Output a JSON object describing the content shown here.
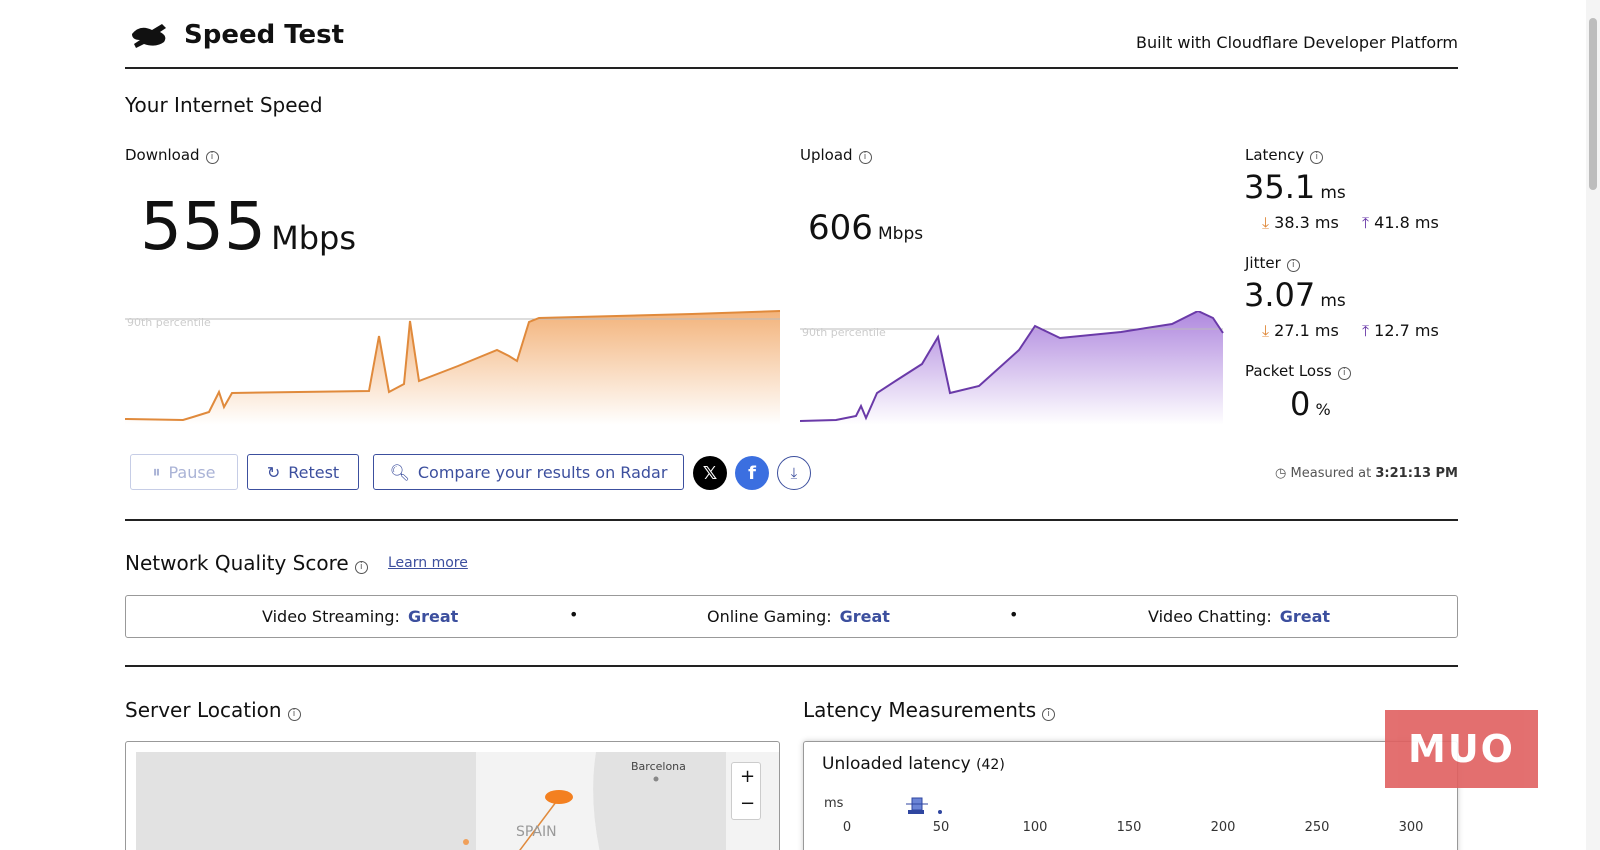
{
  "header": {
    "title": "Speed Test",
    "tagline": "Built with Cloudflare Developer Platform"
  },
  "speed": {
    "title": "Your Internet Speed",
    "download": {
      "label": "Download",
      "value": "555",
      "unit": "Mbps",
      "percentile_label": "90th percentile"
    },
    "upload": {
      "label": "Upload",
      "value": "606",
      "unit": "Mbps",
      "percentile_label": "90th percentile"
    },
    "latency": {
      "label": "Latency",
      "value": "35.1",
      "unit": "ms",
      "down": "38.3 ms",
      "up": "41.8 ms"
    },
    "jitter": {
      "label": "Jitter",
      "value": "3.07",
      "unit": "ms",
      "down": "27.1 ms",
      "up": "12.7 ms"
    },
    "packet_loss": {
      "label": "Packet Loss",
      "value": "0",
      "unit": "%"
    }
  },
  "actions": {
    "buttons": [
      "Pause",
      "Retest",
      "Compare your results on Radar"
    ],
    "measured_label": "Measured at",
    "measured_time": "3:21:13 PM"
  },
  "quality": {
    "title": "Network Quality Score",
    "link": "Learn more",
    "items": [
      {
        "label": "Video Streaming:",
        "rating": "Great"
      },
      {
        "label": "Online Gaming:",
        "rating": "Great"
      },
      {
        "label": "Video Chatting:",
        "rating": "Great"
      }
    ]
  },
  "server": {
    "title": "Server Location",
    "map_labels": [
      "Barcelona",
      "SPAIN"
    ],
    "zoom": [
      "+",
      "−"
    ]
  },
  "latency_measurements": {
    "title": "Latency Measurements",
    "panel_title": "Unloaded latency",
    "count": "(42)",
    "axis_unit": "ms",
    "ticks": [
      "0",
      "50",
      "100",
      "150",
      "200",
      "250",
      "300"
    ]
  },
  "watermark": "MUO"
}
